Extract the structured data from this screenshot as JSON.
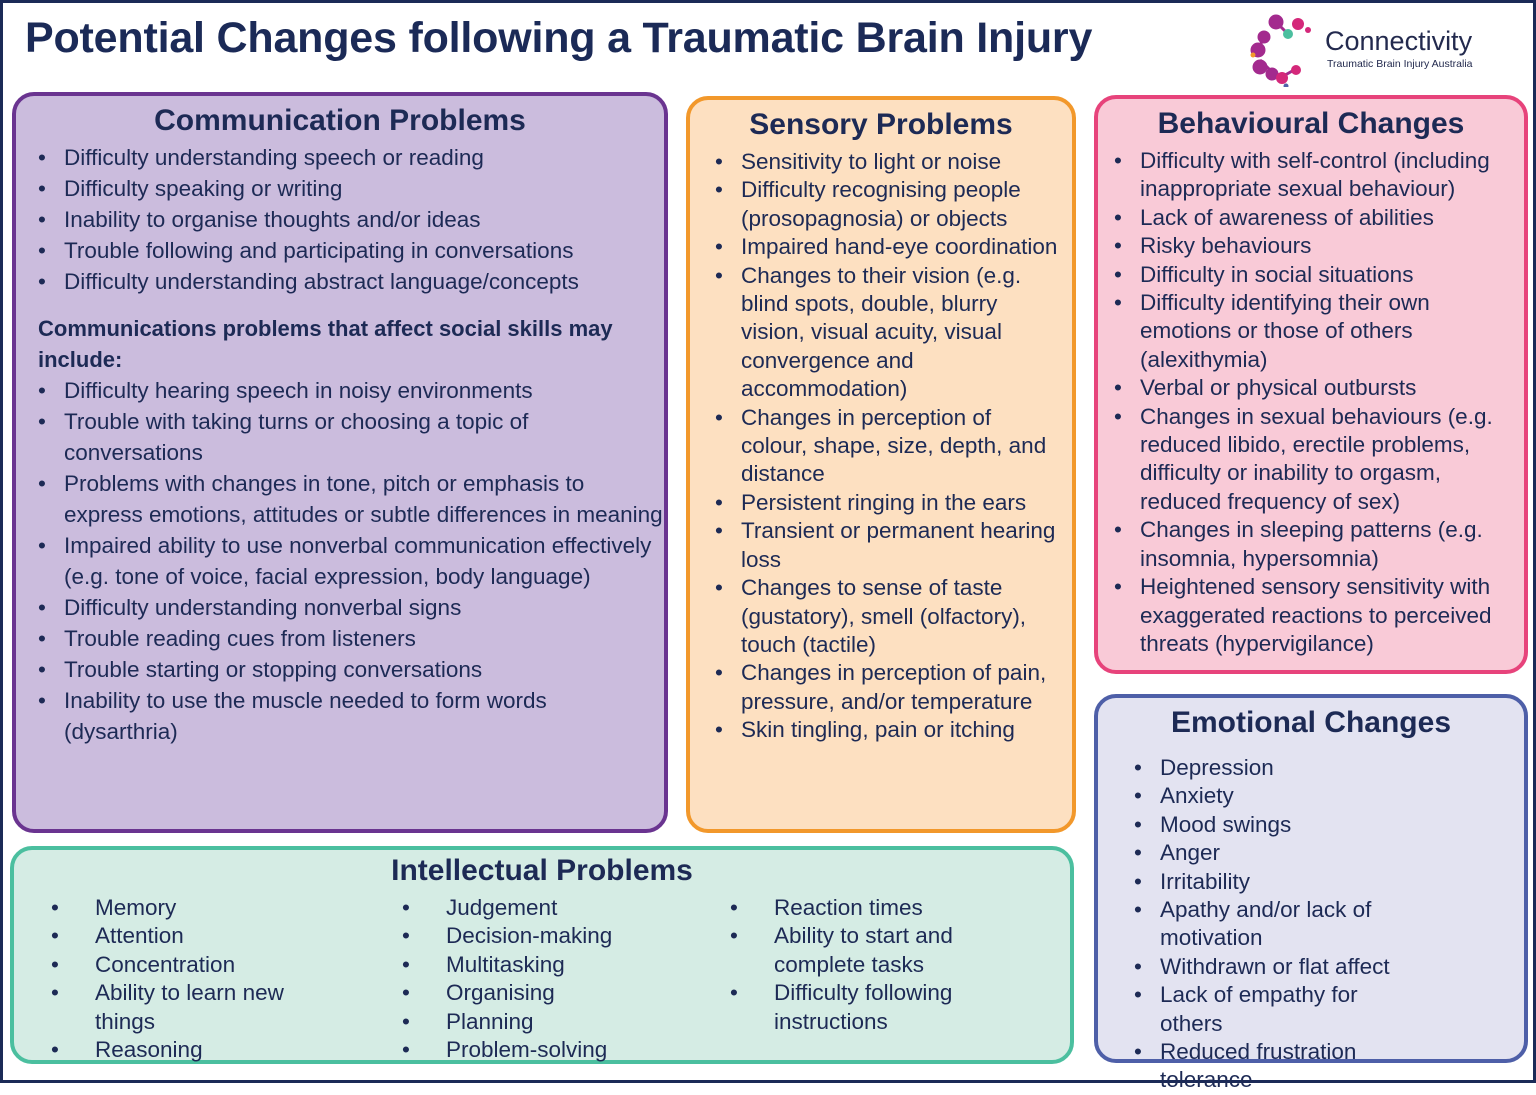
{
  "title": "Potential Changes following a Traumatic Brain Injury",
  "logo": {
    "name": "Connectivity",
    "tagline": "Traumatic Brain Injury Australia",
    "colors": [
      "#9c2a8c",
      "#d4287a",
      "#4bbf9f",
      "#f2982b",
      "#5060a8"
    ]
  },
  "communication": {
    "heading": "Communication Problems",
    "items": [
      "Difficulty understanding speech or reading",
      "Difficulty speaking or writing",
      "Inability to organise thoughts and/or ideas",
      "Trouble following and participating in conversations",
      "Difficulty understanding abstract language/concepts"
    ],
    "subheading": "Communications problems that affect social skills may include:",
    "social_items": [
      "Difficulty hearing speech in noisy environments",
      "Trouble with taking turns or choosing a topic of conversations",
      "Problems with changes in tone, pitch or emphasis to express emotions, attitudes or subtle differences in meaning",
      "Impaired ability to use nonverbal communication effectively (e.g. tone of voice, facial expression, body language)",
      "Difficulty understanding nonverbal signs",
      "Trouble reading cues from listeners",
      "Trouble starting or stopping conversations",
      "Inability to use the muscle needed to form words (dysarthria)"
    ]
  },
  "sensory": {
    "heading": "Sensory Problems",
    "items": [
      "Sensitivity to light or noise",
      "Difficulty recognising people (prosopagnosia) or objects",
      "Impaired hand-eye coordination",
      "Changes to their vision (e.g. blind spots, double, blurry vision, visual acuity, visual convergence and accommodation)",
      "Changes in perception of colour, shape, size, depth, and distance",
      "Persistent ringing in the ears",
      "Transient or permanent hearing loss",
      "Changes to sense of taste (gustatory), smell (olfactory), touch (tactile)",
      "Changes in perception of pain, pressure, and/or temperature",
      "Skin tingling, pain or itching"
    ]
  },
  "behavioural": {
    "heading": "Behavioural Changes",
    "items": [
      "Difficulty with self-control (including inappropriate sexual behaviour)",
      "Lack of awareness of abilities",
      "Risky behaviours",
      "Difficulty in social situations",
      "Difficulty identifying their own emotions or those of others (alexithymia)",
      "Verbal or physical outbursts",
      "Changes in sexual behaviours (e.g. reduced libido, erectile problems, difficulty or inability to orgasm, reduced frequency of sex)",
      "Changes in sleeping patterns (e.g. insomnia, hypersomnia)",
      "Heightened sensory sensitivity with exaggerated reactions to perceived threats (hypervigilance)"
    ]
  },
  "emotional": {
    "heading": "Emotional Changes",
    "items": [
      "Depression",
      "Anxiety",
      "Mood swings",
      "Anger",
      "Irritability",
      "Apathy and/or lack of motivation",
      "Withdrawn or flat affect",
      "Lack of empathy for others",
      "Reduced frustration tolerance"
    ]
  },
  "intellectual": {
    "heading": "Intellectual Problems",
    "columns": [
      [
        "Memory",
        "Attention",
        "Concentration",
        "Ability to learn new things",
        "Reasoning"
      ],
      [
        "Judgement",
        "Decision-making",
        "Multitasking",
        "Organising",
        "Planning",
        "Problem-solving"
      ],
      [
        "Reaction times",
        "Ability to start and complete tasks",
        "Difficulty following instructions"
      ]
    ]
  }
}
